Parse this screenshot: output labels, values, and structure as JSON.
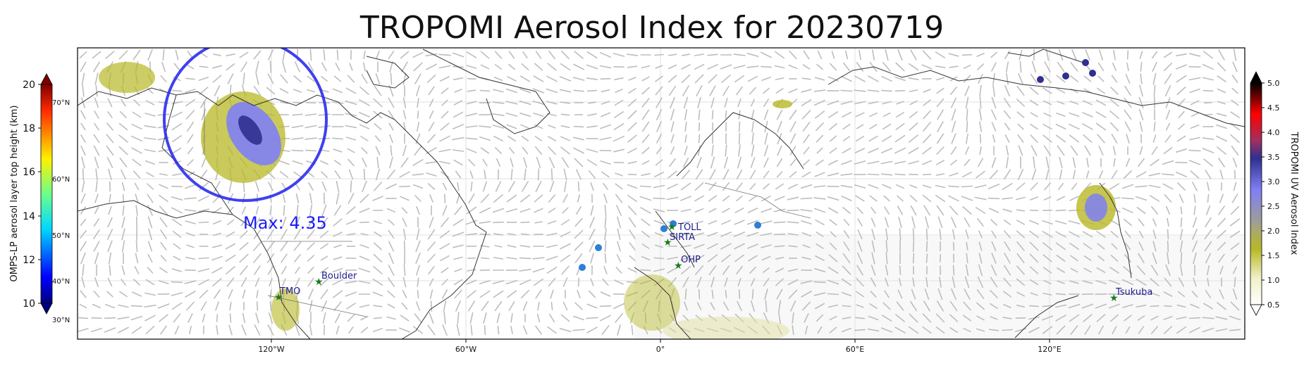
{
  "title": "TROPOMI Aerosol Index for 20230719",
  "map": {
    "lon_ticks": [
      "120°W",
      "60°W",
      "0°",
      "60°E",
      "120°E"
    ],
    "lat_ticks": [
      "70°N",
      "60°N",
      "50°N",
      "40°N",
      "30°N"
    ],
    "max_label": "Max: 4.35",
    "stations": [
      {
        "name": "TOLL"
      },
      {
        "name": "SIRTA"
      },
      {
        "name": "OHP"
      },
      {
        "name": "Boulder"
      },
      {
        "name": "TMO"
      },
      {
        "name": "Tsukuba"
      }
    ],
    "colors": {
      "circle": "#2b2bf0",
      "max_text": "#1a1aff",
      "station_marker": "#1a7a1a",
      "station_label": "#1a1a8c",
      "coastline": "#333333",
      "wind_arrows": "#bdbdbd",
      "ompslp_points": "#2d7fd6"
    }
  },
  "left_colorbar": {
    "label": "OMPS-LP aerosol layer top height (km)",
    "ticks": [
      "20",
      "18",
      "16",
      "14",
      "12",
      "10"
    ],
    "range": [
      10,
      20
    ],
    "colormap": "jet"
  },
  "right_colorbar": {
    "label": "TROPOMI UV Aerosol Index",
    "ticks": [
      "5.0",
      "4.5",
      "4.0",
      "3.5",
      "3.0",
      "2.5",
      "2.0",
      "1.5",
      "1.0",
      "0.5"
    ],
    "range": [
      0.5,
      5.0
    ],
    "colormap": "white-olive-grey-blue-red-black"
  }
}
